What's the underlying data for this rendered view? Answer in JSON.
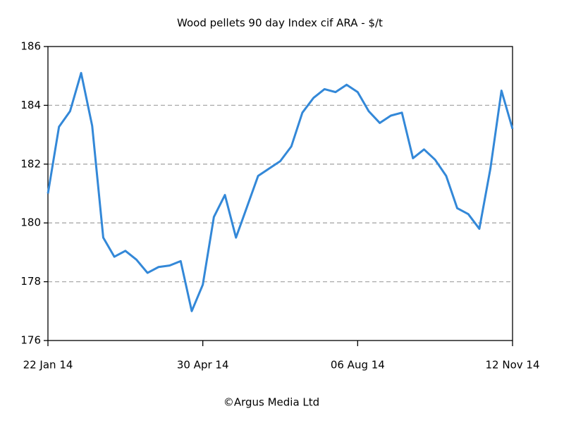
{
  "chart_data": {
    "type": "line",
    "title": "Wood pellets 90 day Index cif ARA - $/t",
    "source": "©Argus Media Ltd",
    "categories": [
      "22 Jan 14",
      null,
      null,
      null,
      null,
      null,
      null,
      null,
      null,
      null,
      null,
      null,
      null,
      null,
      "30 Apr 14",
      null,
      null,
      null,
      null,
      null,
      null,
      null,
      null,
      null,
      null,
      null,
      null,
      null,
      "06 Aug 14",
      null,
      null,
      null,
      null,
      null,
      null,
      null,
      null,
      null,
      null,
      null,
      null,
      null,
      "12 Nov 14"
    ],
    "series": [
      {
        "name": "Wood pellets 90 day Index cif ARA",
        "color": "#3388d8",
        "values": [
          181.0,
          183.27,
          183.8,
          185.1,
          183.3,
          179.5,
          178.85,
          179.05,
          178.75,
          178.3,
          178.5,
          178.55,
          178.7,
          177.0,
          177.9,
          180.2,
          180.95,
          179.5,
          180.55,
          181.6,
          181.85,
          182.1,
          182.6,
          183.75,
          184.25,
          184.55,
          184.45,
          184.7,
          184.45,
          183.8,
          183.4,
          183.65,
          183.75,
          182.2,
          182.5,
          182.15,
          181.6,
          180.5,
          180.3,
          179.8,
          181.85,
          184.5,
          183.2
        ]
      }
    ],
    "ylim": [
      176,
      186
    ],
    "yticks": [
      176,
      178,
      180,
      182,
      184,
      186
    ],
    "grid": true
  }
}
